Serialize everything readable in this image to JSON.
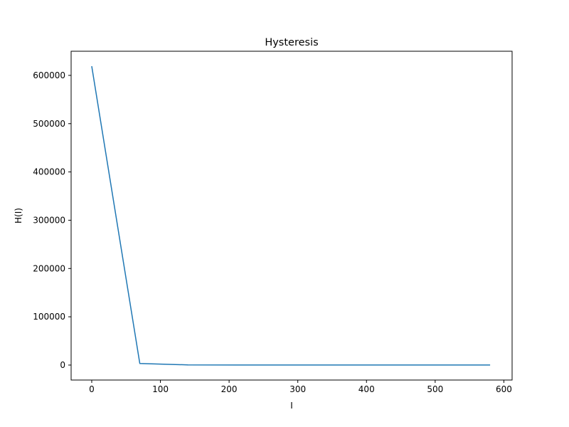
{
  "chart_data": {
    "type": "line",
    "title": "Hysteresis",
    "xlabel": "I",
    "ylabel": "H(I)",
    "xlim": [
      -30,
      612
    ],
    "ylim": [
      -31000,
      650000
    ],
    "xticks": [
      0,
      100,
      200,
      300,
      400,
      500,
      600
    ],
    "yticks": [
      0,
      100000,
      200000,
      300000,
      400000,
      500000,
      600000
    ],
    "grid": false,
    "series": [
      {
        "color": "#1f77b4",
        "x": [
          0,
          70,
          140,
          210,
          280,
          350,
          420,
          490,
          580
        ],
        "y": [
          619000,
          3200,
          400,
          200,
          150,
          120,
          100,
          90,
          80
        ]
      }
    ]
  }
}
